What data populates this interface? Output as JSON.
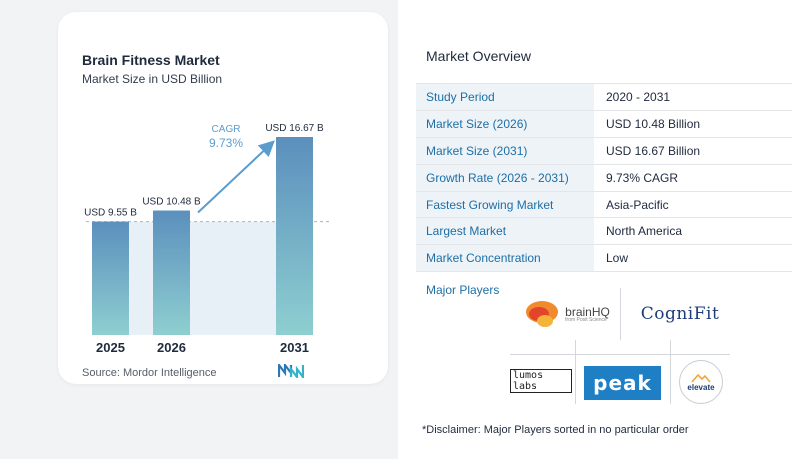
{
  "chart_data": {
    "type": "bar",
    "title": "Brain Fitness Market",
    "subtitle": "Market Size in USD Billion",
    "categories": [
      "2025",
      "2026",
      "2031"
    ],
    "values": [
      9.55,
      10.48,
      16.67
    ],
    "value_labels": [
      "USD 9.55 B",
      "USD 10.48 B",
      "USD 16.67 B"
    ],
    "cagr_label": "CAGR",
    "cagr_value": "9.73%",
    "ylim": [
      0,
      18
    ],
    "grid": false,
    "colors": {
      "bar_top": "#5b8fbd",
      "bar_bottom": "#8ecfd0",
      "accent": "#5b9ccf",
      "reference_fill": "#e8f0f7"
    }
  },
  "source": "Source:  Mordor Intelligence",
  "overview": {
    "title": "Market Overview",
    "rows": [
      {
        "label": "Study Period",
        "value": "2020 - 2031"
      },
      {
        "label": "Market Size (2026)",
        "value": "USD 10.48 Billion"
      },
      {
        "label": "Market Size (2031)",
        "value": "USD 16.67 Billion"
      },
      {
        "label": "Growth Rate (2026 - 2031)",
        "value": "9.73% CAGR"
      },
      {
        "label": "Fastest Growing Market",
        "value": "Asia-Pacific"
      },
      {
        "label": "Largest Market",
        "value": "North America"
      },
      {
        "label": "Market Concentration",
        "value": "Low"
      }
    ]
  },
  "major_players": {
    "title": "Major Players",
    "logos": {
      "brainhq": {
        "name": "brainHQ",
        "tagline": "from Posit Science",
        "icon": "brain-icon"
      },
      "cognifit": {
        "name": "CogniFit",
        "icon": "cognifit-logo"
      },
      "lumos": {
        "name": "lumos labs",
        "icon": "lumos-logo"
      },
      "peak": {
        "name": "peak",
        "icon": "peak-logo"
      },
      "elevate": {
        "name": "elevate",
        "icon": "mountain-icon"
      }
    }
  },
  "disclaimer": "*Disclaimer: Major Players sorted in no particular order"
}
